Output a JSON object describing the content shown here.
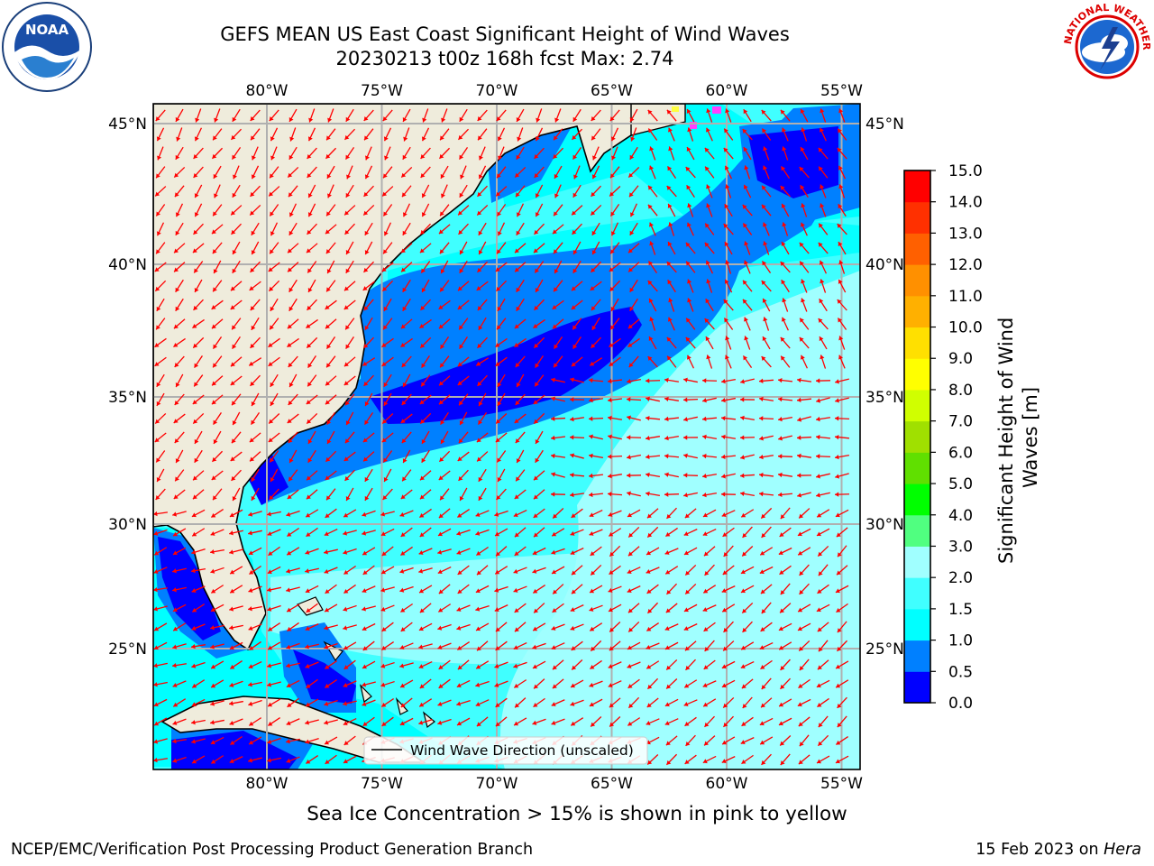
{
  "title": {
    "line1": "GEFS MEAN US East Coast Significant Height of Wind Waves",
    "line2": "20230213 t00z 168h fcst   Max: 2.74"
  },
  "logos": {
    "left": "NOAA",
    "right": "NATIONAL WEATHER SERVICE"
  },
  "map": {
    "lon_ticks": [
      "80°W",
      "75°W",
      "70°W",
      "65°W",
      "60°W",
      "55°W"
    ],
    "lat_ticks": [
      "45°N",
      "40°N",
      "35°N",
      "30°N",
      "25°N"
    ],
    "lon_values": [
      -80,
      -75,
      -70,
      -65,
      -60,
      -55
    ],
    "lat_values": [
      45,
      40,
      35,
      30,
      25
    ],
    "legend_label": "Wind Wave Direction (unscaled)",
    "arrow_color": "#ff0000",
    "land_color": "#efecdc",
    "grid_color": "#b0b0b0"
  },
  "colorbar": {
    "label": "Significant Height of Wind Waves [m]",
    "ticks": [
      "0.0",
      "0.5",
      "1.0",
      "1.5",
      "2.0",
      "3.0",
      "4.0",
      "5.0",
      "6.0",
      "7.0",
      "8.0",
      "9.0",
      "10.0",
      "11.0",
      "12.0",
      "13.0",
      "14.0",
      "15.0"
    ],
    "colors": [
      "#0000ff",
      "#0080ff",
      "#00ffff",
      "#40ffff",
      "#a0ffff",
      "#50ff80",
      "#00ff00",
      "#60e000",
      "#a0e000",
      "#d0ff00",
      "#ffff00",
      "#ffe000",
      "#ffb000",
      "#ff9000",
      "#ff6000",
      "#ff3000",
      "#ff0000"
    ]
  },
  "notes": {
    "ice": "Sea Ice Concentration > 15% is shown in pink to yellow",
    "footer_left": "NCEP/EMC/Verification Post Processing Product Generation Branch",
    "footer_date": "15 Feb 2023 on ",
    "footer_host": "Hera"
  }
}
